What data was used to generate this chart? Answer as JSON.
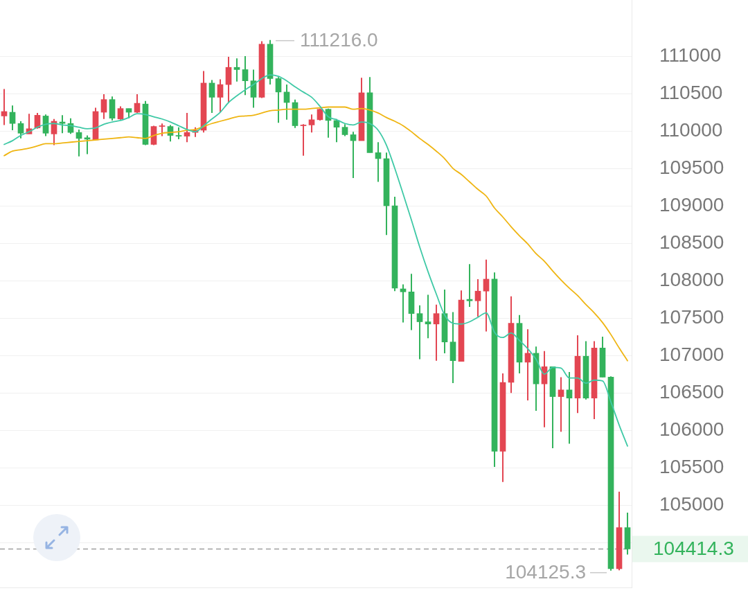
{
  "chart_data": {
    "type": "candlestick",
    "categories": [
      null,
      null,
      null,
      null,
      null,
      null,
      null,
      null,
      null,
      null,
      null,
      null,
      null,
      null,
      null,
      null,
      null,
      null,
      null,
      null,
      null,
      null,
      null,
      null,
      null,
      null,
      null,
      null,
      null,
      null,
      null,
      null,
      null,
      null,
      null,
      null,
      null,
      null,
      null,
      null,
      null,
      null,
      null,
      null,
      null,
      null,
      null,
      null,
      null,
      null,
      null,
      null,
      null,
      null,
      null,
      null,
      null,
      null,
      null,
      null,
      null,
      null,
      null,
      null,
      null,
      null,
      null,
      null,
      null,
      null,
      null,
      null,
      null,
      null,
      null,
      null
    ],
    "ohlc": [
      [
        110200,
        110560,
        110080,
        110260
      ],
      [
        110250,
        110340,
        110010,
        110100
      ],
      [
        110100,
        110130,
        109900,
        109970
      ],
      [
        109960,
        110230,
        109960,
        110030
      ],
      [
        110040,
        110240,
        110030,
        110210
      ],
      [
        110200,
        110220,
        109930,
        109970
      ],
      [
        109960,
        110160,
        109810,
        110130
      ],
      [
        110120,
        110210,
        109970,
        110100
      ],
      [
        110100,
        110170,
        109960,
        109980
      ],
      [
        109980,
        110020,
        109660,
        109900
      ],
      [
        109910,
        109940,
        109690,
        109890
      ],
      [
        109880,
        110310,
        109870,
        110260
      ],
      [
        110250,
        110490,
        110160,
        110420
      ],
      [
        110420,
        110460,
        110140,
        110170
      ],
      [
        110160,
        110330,
        110150,
        110300
      ],
      [
        110300,
        110300,
        110170,
        110250
      ],
      [
        110250,
        110490,
        110240,
        110370
      ],
      [
        110360,
        110400,
        109810,
        109820
      ],
      [
        109820,
        110070,
        109810,
        110060
      ],
      [
        110060,
        110100,
        109930,
        110070
      ],
      [
        110060,
        110080,
        109860,
        109940
      ],
      [
        109940,
        110050,
        109890,
        109930
      ],
      [
        109930,
        110240,
        109850,
        109980
      ],
      [
        109980,
        110050,
        109920,
        110010
      ],
      [
        110010,
        110800,
        109980,
        110640
      ],
      [
        110640,
        110680,
        110240,
        110450
      ],
      [
        110450,
        110690,
        110250,
        110620
      ],
      [
        110620,
        110990,
        110380,
        110850
      ],
      [
        110850,
        110970,
        110660,
        110820
      ],
      [
        110820,
        111000,
        110480,
        110670
      ],
      [
        110670,
        110820,
        110310,
        110450
      ],
      [
        110450,
        111200,
        110440,
        111160
      ],
      [
        111160,
        111216,
        110620,
        110700
      ],
      [
        110700,
        110720,
        110110,
        110520
      ],
      [
        110520,
        110620,
        110150,
        110380
      ],
      [
        110380,
        110420,
        110040,
        110070
      ],
      [
        110070,
        110090,
        109670,
        110080
      ],
      [
        110080,
        110220,
        109980,
        110150
      ],
      [
        110150,
        110300,
        110140,
        110290
      ],
      [
        110290,
        110300,
        109910,
        110140
      ],
      [
        110140,
        110160,
        109850,
        110050
      ],
      [
        110050,
        110090,
        109930,
        109950
      ],
      [
        109950,
        109990,
        109370,
        109870
      ],
      [
        109870,
        110710,
        109870,
        110510
      ],
      [
        110510,
        110720,
        109710,
        109710
      ],
      [
        109710,
        109850,
        109320,
        109630
      ],
      [
        109630,
        109710,
        108610,
        109000
      ],
      [
        109000,
        109120,
        107860,
        107900
      ],
      [
        107890,
        107950,
        107440,
        107850
      ],
      [
        107850,
        108090,
        107340,
        107560
      ],
      [
        107560,
        107670,
        106950,
        107450
      ],
      [
        107450,
        107810,
        107230,
        107420
      ],
      [
        107420,
        107680,
        106930,
        107560
      ],
      [
        107560,
        107880,
        107030,
        107180
      ],
      [
        107180,
        107580,
        106630,
        106930
      ],
      [
        106920,
        107870,
        106920,
        107740
      ],
      [
        107750,
        108220,
        107650,
        107730
      ],
      [
        107730,
        108020,
        107520,
        107860
      ],
      [
        107860,
        108280,
        107320,
        108020
      ],
      [
        108020,
        108110,
        105510,
        105720
      ],
      [
        105720,
        106760,
        105310,
        106640
      ],
      [
        106640,
        107790,
        106500,
        107430
      ],
      [
        107430,
        107540,
        106760,
        106910
      ],
      [
        106910,
        107350,
        106400,
        107030
      ],
      [
        107030,
        107120,
        106260,
        106620
      ],
      [
        106620,
        107060,
        106040,
        106850
      ],
      [
        106850,
        106850,
        105760,
        106450
      ],
      [
        106450,
        106710,
        105980,
        106540
      ],
      [
        106540,
        106780,
        105820,
        106430
      ],
      [
        106430,
        107270,
        106230,
        106990
      ],
      [
        106990,
        107190,
        106410,
        106430
      ],
      [
        106430,
        107190,
        106150,
        107100
      ],
      [
        107100,
        107250,
        106710,
        106710
      ],
      [
        106710,
        106720,
        104125.3,
        104150
      ],
      [
        104150,
        105180,
        104130,
        104700
      ],
      [
        104700,
        104900,
        104340,
        104414.3
      ]
    ],
    "colors": [
      "#e34652",
      "#33b35c",
      "#33b35c",
      "#e34652",
      "#e34652",
      "#33b35c",
      "#e34652",
      "#33b35c",
      "#33b35c",
      "#33b35c",
      "#33b35c",
      "#e34652",
      "#e34652",
      "#33b35c",
      "#e34652",
      "#33b35c",
      "#e34652",
      "#33b35c",
      "#e34652",
      "#e34652",
      "#33b35c",
      "#33b35c",
      "#e34652",
      "#e34652",
      "#e34652",
      "#33b35c",
      "#e34652",
      "#e34652",
      "#33b35c",
      "#33b35c",
      "#33b35c",
      "#e34652",
      "#33b35c",
      "#33b35c",
      "#33b35c",
      "#33b35c",
      "#e34652",
      "#e34652",
      "#e34652",
      "#33b35c",
      "#33b35c",
      "#33b35c",
      "#33b35c",
      "#e34652",
      "#33b35c",
      "#33b35c",
      "#33b35c",
      "#33b35c",
      "#33b35c",
      "#33b35c",
      "#33b35c",
      "#33b35c",
      "#e34652",
      "#33b35c",
      "#33b35c",
      "#e34652",
      "#33b35c",
      "#e34652",
      "#e34652",
      "#33b35c",
      "#e34652",
      "#e34652",
      "#33b35c",
      "#e34652",
      "#33b35c",
      "#e34652",
      "#33b35c",
      "#e34652",
      "#33b35c",
      "#e34652",
      "#33b35c",
      "#e34652",
      "#33b35c",
      "#33b35c",
      "#e34652",
      "#33b35c"
    ],
    "series": [
      {
        "type": "line",
        "color": "#3fc9a6",
        "values": [
          109820,
          109870,
          109940,
          109990,
          110050,
          110090,
          110100,
          110080,
          110070,
          110050,
          110030,
          110040,
          110090,
          110120,
          110140,
          110180,
          110230,
          110220,
          110190,
          110160,
          110120,
          110070,
          110020,
          109990,
          110070,
          110160,
          110250,
          110380,
          110470,
          110550,
          110620,
          110700,
          110750,
          110730,
          110670,
          110590,
          110520,
          110450,
          110330,
          110190,
          110150,
          110100,
          110080,
          110120,
          110100,
          110010,
          109810,
          109500,
          109160,
          108810,
          108450,
          108120,
          107820,
          107540,
          107430,
          107420,
          107450,
          107510,
          107570,
          107310,
          107240,
          107300,
          107200,
          107090,
          106950,
          106750,
          106840,
          106830,
          106700,
          106700,
          106630,
          106670,
          106660,
          106380,
          106070,
          105790
        ]
      },
      {
        "type": "line",
        "color": "#efb512",
        "values": [
          109670,
          109730,
          109750,
          109770,
          109800,
          109830,
          109830,
          109840,
          109850,
          109860,
          109870,
          109880,
          109890,
          109900,
          109910,
          109920,
          109910,
          109900,
          109940,
          109970,
          109980,
          109990,
          110010,
          110020,
          110060,
          110100,
          110130,
          110160,
          110190,
          110200,
          110210,
          110240,
          110270,
          110280,
          110290,
          110290,
          110290,
          110300,
          110310,
          110320,
          110320,
          110320,
          110290,
          110300,
          110280,
          110240,
          110180,
          110130,
          110070,
          109990,
          109900,
          109820,
          109730,
          109630,
          109500,
          109420,
          109320,
          109220,
          109130,
          108970,
          108850,
          108720,
          108600,
          108490,
          108360,
          108260,
          108130,
          108010,
          107900,
          107800,
          107680,
          107570,
          107440,
          107280,
          107100,
          106930
        ]
      }
    ],
    "ylim": [
      103900,
      111750
    ],
    "yticks": [
      {
        "value": 104500,
        "label": null
      },
      105000,
      105500,
      106000,
      106500,
      107000,
      107500,
      108000,
      108500,
      109000,
      109500,
      110000,
      110500,
      111000
    ],
    "grid": "y",
    "tick_labels": "y",
    "ref_lines": [
      {
        "axis": "y",
        "value": 104414.3,
        "label": "104414.3",
        "color": "#9e9e9e",
        "line_style": "dashed"
      }
    ],
    "annotations": [
      "111216.0",
      "104125.3"
    ]
  }
}
